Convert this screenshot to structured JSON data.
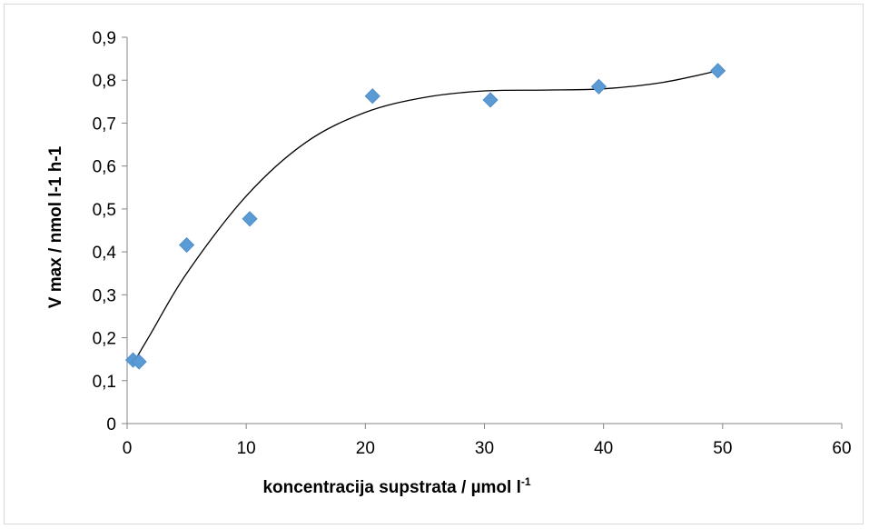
{
  "chart_data": {
    "type": "scatter",
    "title": "",
    "xlabel": "koncentracija supstrata / µmol l",
    "xlabel_superscript": "-1",
    "ylabel": "V max / nmol l-1 h-1",
    "xlim": [
      0,
      60
    ],
    "ylim": [
      0,
      0.9
    ],
    "x_ticks": [
      0,
      10,
      20,
      30,
      40,
      50,
      60
    ],
    "x_tick_labels": [
      "0",
      "10",
      "20",
      "30",
      "40",
      "50",
      "60"
    ],
    "y_ticks": [
      0,
      0.1,
      0.2,
      0.3,
      0.4,
      0.5,
      0.6,
      0.7,
      0.8,
      0.9
    ],
    "y_tick_labels": [
      "0",
      "0,1",
      "0,2",
      "0,3",
      "0,4",
      "0,5",
      "0,6",
      "0,7",
      "0,8",
      "0,9"
    ],
    "grid": false,
    "legend": "none",
    "marker": "diamond",
    "marker_color": "#5b9bd5",
    "trendline_color": "#000000",
    "series": [
      {
        "x": [
          0.5,
          1.0,
          5.0,
          10.3,
          20.6,
          30.5,
          39.6,
          49.6
        ],
        "y": [
          0.148,
          0.144,
          0.416,
          0.477,
          0.763,
          0.754,
          0.785,
          0.822
        ]
      }
    ],
    "trendline": {
      "type": "polynomial",
      "x": [
        0.5,
        2,
        5,
        10,
        15,
        20,
        25,
        30,
        35,
        40,
        45,
        49.6
      ],
      "y": [
        0.14,
        0.21,
        0.35,
        0.53,
        0.655,
        0.725,
        0.76,
        0.775,
        0.777,
        0.78,
        0.795,
        0.822
      ]
    }
  }
}
